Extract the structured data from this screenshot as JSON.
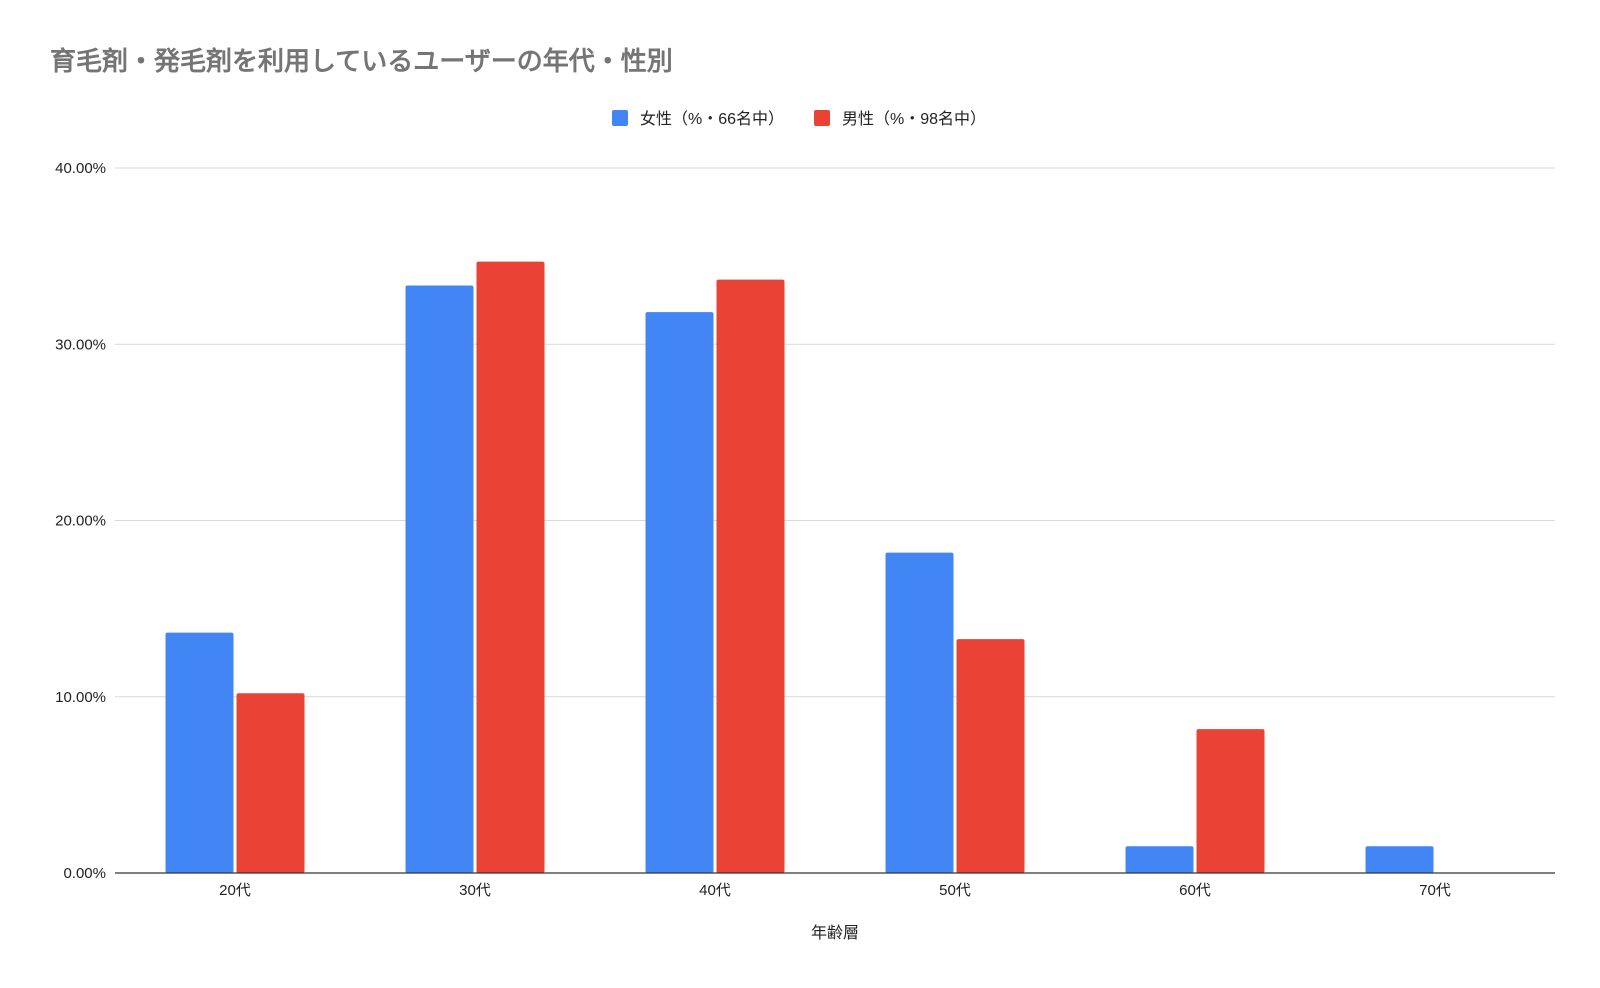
{
  "chart_data": {
    "type": "bar",
    "title": "育毛剤・発毛剤を利用しているユーザーの年代・性別",
    "xlabel": "年齢層",
    "ylabel": "",
    "categories": [
      "20代",
      "30代",
      "40代",
      "50代",
      "60代",
      "70代"
    ],
    "series": [
      {
        "name": "女性（%・66名中）",
        "color": "#4285f4",
        "values": [
          13.64,
          33.33,
          31.82,
          18.18,
          1.52,
          1.52
        ]
      },
      {
        "name": "男性（%・98名中）",
        "color": "#ea4335",
        "values": [
          10.2,
          34.69,
          33.67,
          13.27,
          8.16,
          0
        ]
      }
    ],
    "ylim": [
      0,
      40
    ],
    "yticks": [
      0,
      10,
      20,
      30,
      40
    ],
    "ytick_labels": [
      "0.00%",
      "10.00%",
      "20.00%",
      "30.00%",
      "40.00%"
    ],
    "grid": true,
    "legend_position": "top-center"
  }
}
